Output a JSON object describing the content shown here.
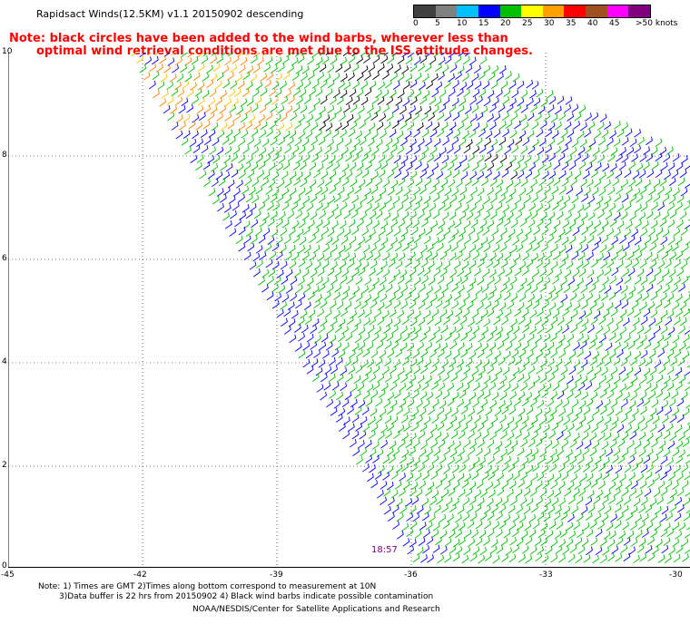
{
  "header": {
    "title": "Rapidsact Winds(12.5KM) v1.1 20150902 descending",
    "note_line1": "Note: black circles have been added to the wind barbs, wherever less than",
    "note_line2": "optimal wind retrieval conditions are met due to the ISS attitude changes."
  },
  "legend": {
    "ticks": [
      "0",
      "5",
      "10",
      "15",
      "20",
      "25",
      "30",
      "35",
      "40",
      "45",
      ">50 knots"
    ],
    "colors": [
      "#000000",
      "#808080",
      "#00c0ff",
      "#0000ff",
      "#00c000",
      "#ffff00",
      "#ffa000",
      "#ff0000",
      "#a05020",
      "#ff00ff",
      "#800080"
    ]
  },
  "axes": {
    "y_labels": [
      "10",
      "8",
      "6",
      "4",
      "2",
      "0"
    ],
    "x_labels": [
      "-45",
      "-42",
      "-39",
      "-36",
      "-33",
      "-30"
    ]
  },
  "timestamp": "18:57",
  "footnotes": {
    "line1": "Note: 1) Times are GMT 2)Times along bottom correspond to measurement at 10N",
    "line2": "3)Data buffer is 22 hrs from 20150902 4) Black wind barbs indicate possible contamination",
    "credit": "NOAA/NESDIS/Center for Satellite Applications and Research"
  },
  "colors": {
    "barb_green": "#00c000",
    "barb_blue": "#0000ff",
    "barb_black": "#000000",
    "barb_orange": "#ff8000",
    "barb_yellow": "#ffc000",
    "grid": "#000000",
    "note": "#ff0000",
    "timestamp": "#800080"
  }
}
